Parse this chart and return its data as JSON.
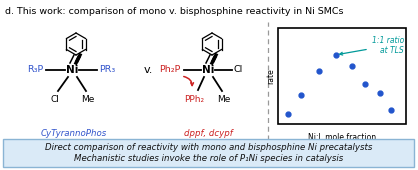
{
  "title": "d. This work: comparison of mono v. bisphosphine reactivity in Ni SMCs",
  "title_color": "#000000",
  "title_fontsize": 6.8,
  "bg_color": "#ffffff",
  "footer_text_line1": "Direct comparison of reactivity with mono and bisphosphine Ni precatalysts",
  "footer_text_line2": "Mechanistic studies invoke the role of P₁Ni species in catalysis",
  "footer_bg": "#daeaf7",
  "footer_border": "#8ab4d4",
  "left_label": "CyTyrannoPhos",
  "left_label_color": "#3355cc",
  "right_label": "dppf, dcypf",
  "right_label_color": "#cc2222",
  "vs_text": "v.",
  "scatter_xlabel": "Ni:L mole fraction",
  "scatter_ylabel": "rate",
  "scatter_annotation": "1:1 ratio\nat TLS",
  "scatter_annotation_color": "#009999",
  "scatter_x": [
    0.08,
    0.18,
    0.32,
    0.45,
    0.58,
    0.68,
    0.8,
    0.88
  ],
  "scatter_y": [
    0.1,
    0.3,
    0.55,
    0.72,
    0.6,
    0.42,
    0.32,
    0.15
  ],
  "scatter_color": "#2255cc",
  "dashed_line_color": "#999999",
  "ni_color": "#000000",
  "bond_color": "#000000",
  "cl_color": "#000000",
  "me_color": "#000000",
  "left_p_color": "#3355cc",
  "right_p_color": "#cc2222"
}
